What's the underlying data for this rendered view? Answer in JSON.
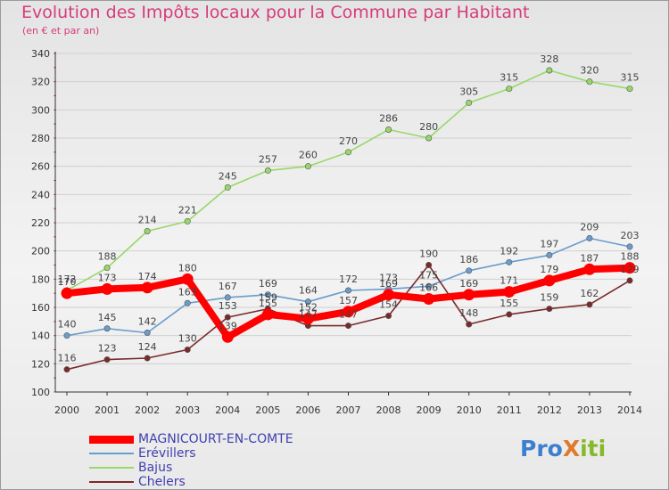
{
  "title": "Evolution des Impôts locaux pour la Commune par Habitant",
  "subtitle": "(en € et par an)",
  "logo_text": "ProXiti",
  "colors": {
    "title": "#d63c7a",
    "MAGNICOURT-EN-COMTE": "#ff0000",
    "Erévillers": "#6a9ccc",
    "Bajus": "#98d86a",
    "Chelers": "#7a2a2a"
  },
  "chart_data": {
    "type": "line",
    "title": "Evolution des Impôts locaux pour la Commune par Habitant",
    "subtitle": "(en € et par an)",
    "x": [
      "2000",
      "2001",
      "2002",
      "2003",
      "2004",
      "2005",
      "2006",
      "2007",
      "2008",
      "2009",
      "2010",
      "2011",
      "2012",
      "2013",
      "2014"
    ],
    "ylim": [
      100,
      340
    ],
    "yticks": [
      100,
      120,
      140,
      160,
      180,
      200,
      220,
      240,
      260,
      280,
      300,
      320,
      340
    ],
    "grid": "horizontal",
    "legend_position": "bottom-left",
    "series": [
      {
        "name": "MAGNICOURT-EN-COMTE",
        "values": [
          170,
          173,
          174,
          180,
          139,
          155,
          152,
          157,
          169,
          166,
          169,
          171,
          179,
          187,
          188
        ]
      },
      {
        "name": "Erévillers",
        "values": [
          140,
          145,
          142,
          163,
          167,
          169,
          164,
          172,
          173,
          175,
          186,
          192,
          197,
          209,
          203
        ]
      },
      {
        "name": "Bajus",
        "values": [
          172,
          188,
          214,
          221,
          245,
          257,
          260,
          270,
          286,
          280,
          305,
          315,
          328,
          320,
          315
        ]
      },
      {
        "name": "Chelers",
        "values": [
          116,
          123,
          124,
          130,
          153,
          159,
          147,
          147,
          154,
          190,
          148,
          155,
          159,
          162,
          179
        ]
      }
    ]
  }
}
